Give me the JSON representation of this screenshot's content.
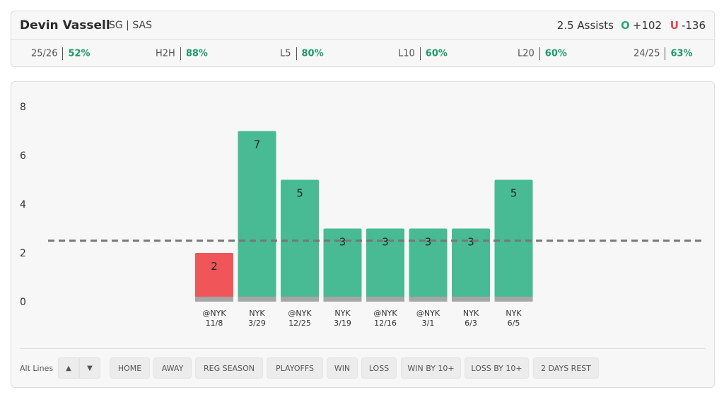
{
  "header": {
    "player_name": "Devin Vassell",
    "position_team": "SG | SAS",
    "market": "2.5 Assists",
    "over": {
      "label": "O",
      "odds": "+102"
    },
    "under": {
      "label": "U",
      "odds": "-136"
    },
    "stats": [
      {
        "label": "25/26",
        "value": "52%"
      },
      {
        "label": "H2H",
        "value": "88%"
      },
      {
        "label": "L5",
        "value": "80%"
      },
      {
        "label": "L10",
        "value": "60%"
      },
      {
        "label": "L20",
        "value": "60%"
      },
      {
        "label": "24/25",
        "value": "63%"
      }
    ]
  },
  "chart_data": {
    "type": "bar",
    "categories": [
      "@NYK 11/8",
      "NYK 3/29",
      "@NYK 12/25",
      "NYK 3/19",
      "@NYK 12/16",
      "@NYK 3/1",
      "NYK 6/3",
      "NYK 6/5"
    ],
    "opponents": [
      "@NYK",
      "NYK",
      "@NYK",
      "NYK",
      "@NYK",
      "@NYK",
      "NYK",
      "NYK"
    ],
    "dates": [
      "11/8",
      "3/29",
      "12/25",
      "3/19",
      "12/16",
      "3/1",
      "6/3",
      "6/5"
    ],
    "values": [
      2,
      7,
      5,
      3,
      3,
      3,
      3,
      5
    ],
    "line": 2.5,
    "ylim": [
      0,
      8
    ],
    "yticks": [
      0,
      2,
      4,
      6,
      8
    ],
    "colors": {
      "over": "#48bb94",
      "under": "#f0555a",
      "base": "#a6a6a6",
      "line": "#777777"
    }
  },
  "controls": {
    "alt_lines_label": "Alt Lines",
    "up_icon": "▲",
    "down_icon": "▼",
    "filters": [
      "HOME",
      "AWAY",
      "REG SEASON",
      "PLAYOFFS",
      "WIN",
      "LOSS",
      "WIN BY 10+",
      "LOSS BY 10+",
      "2 DAYS REST"
    ]
  }
}
